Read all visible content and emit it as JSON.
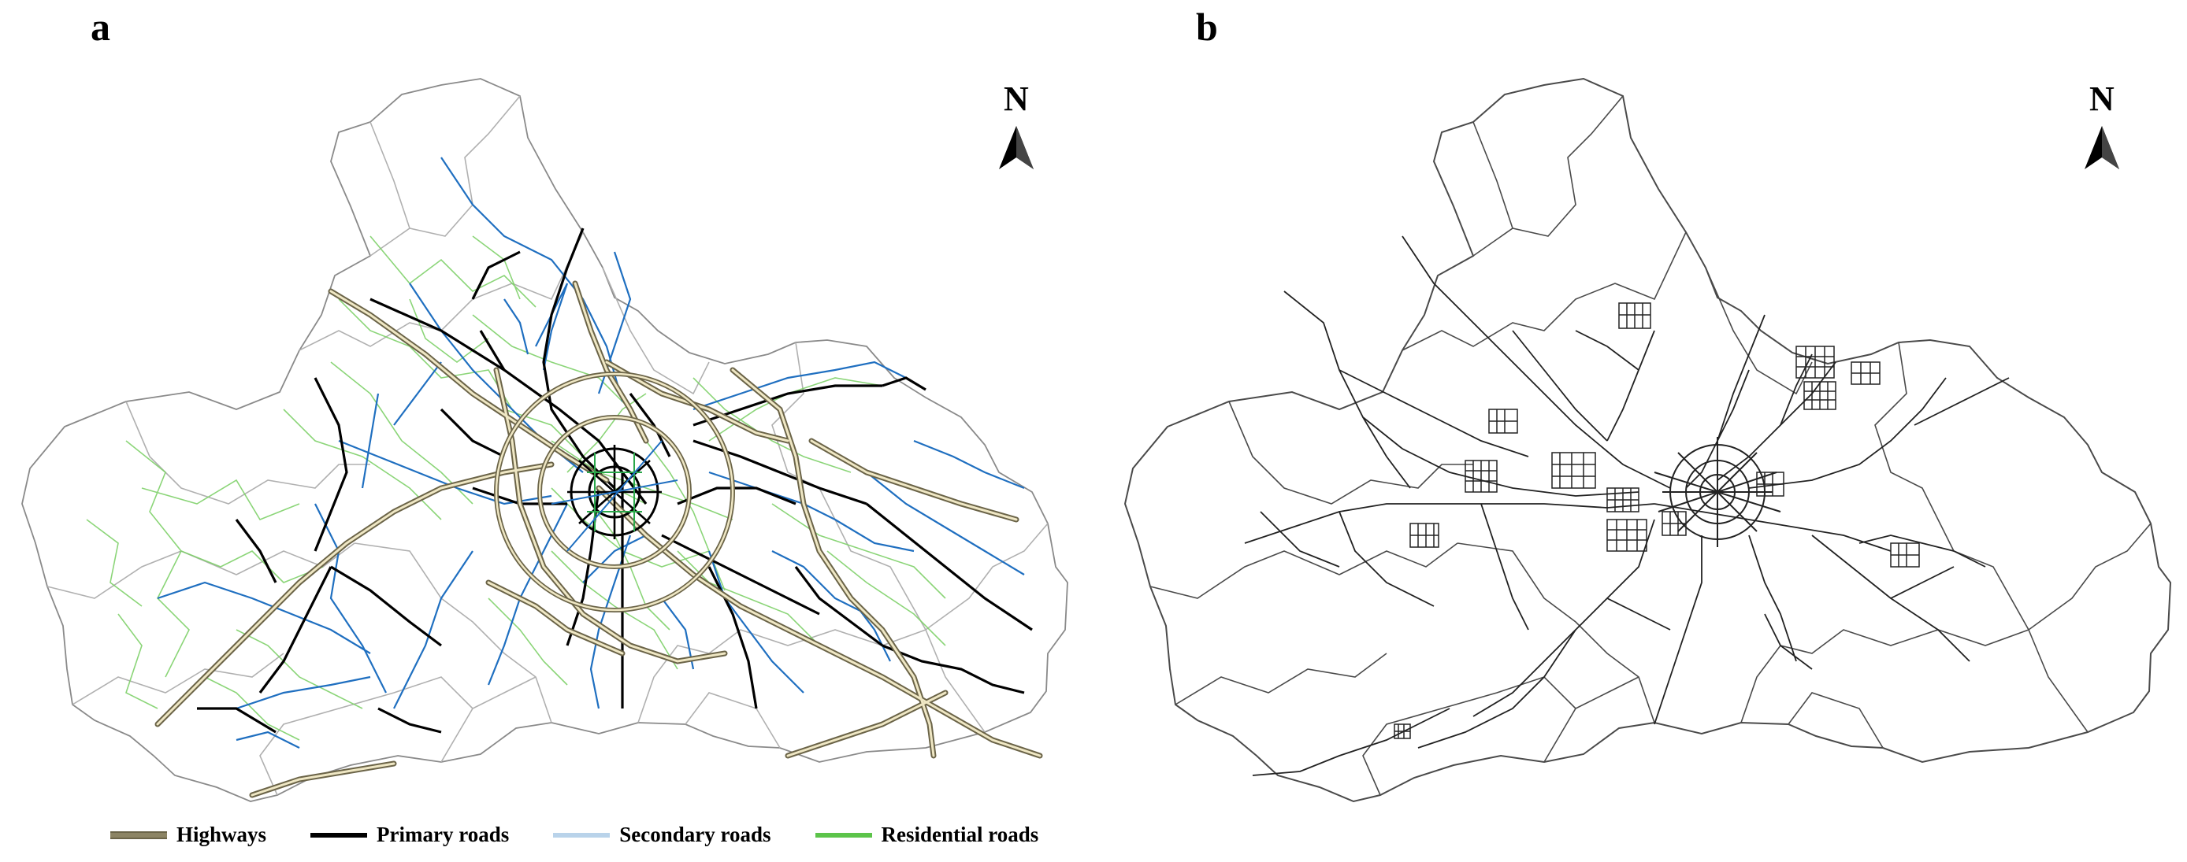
{
  "panels": [
    {
      "letter": "a"
    },
    {
      "letter": "b"
    }
  ],
  "north_arrow": {
    "label": "N"
  },
  "legend": [
    {
      "label": "Highways",
      "color": "#8c8464",
      "inner": "#f2eccf"
    },
    {
      "label": "Primary roads",
      "color": "#000000"
    },
    {
      "label": "Secondary roads",
      "color": "#b9d3ea"
    },
    {
      "label": "Residential roads",
      "color": "#5cc44a"
    }
  ],
  "colors": {
    "boundary": "#8a8a8a",
    "residential": "#7fd16a",
    "secondary": "#1f6fc0",
    "primary": "#000000",
    "highway_outer": "#6b6448",
    "highway_inner": "#efe7c4",
    "network_b": "#222222"
  }
}
